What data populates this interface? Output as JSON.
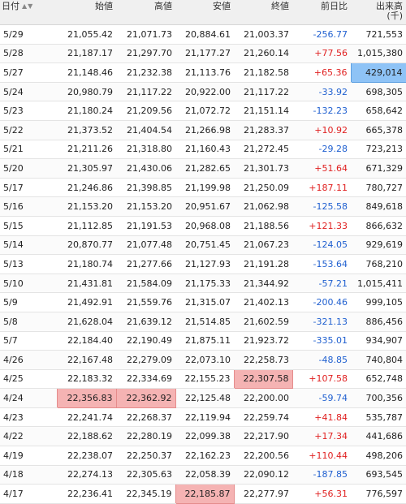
{
  "table": {
    "headers": {
      "date": "日付",
      "open": "始値",
      "high": "高値",
      "low": "安値",
      "close": "終値",
      "change": "前日比",
      "volume_line1": "出来高",
      "volume_line2": "(千)"
    },
    "sort_arrows": "▲▼",
    "rows": [
      {
        "date": "5/29",
        "open": "21,055.42",
        "high": "21,071.73",
        "low": "20,884.61",
        "close": "21,003.37",
        "change": "-256.77",
        "volume": "721,553"
      },
      {
        "date": "5/28",
        "open": "21,187.17",
        "high": "21,297.70",
        "low": "21,177.27",
        "close": "21,260.14",
        "change": "+77.56",
        "volume": "1,015,380"
      },
      {
        "date": "5/27",
        "open": "21,148.46",
        "high": "21,232.38",
        "low": "21,113.76",
        "close": "21,182.58",
        "change": "+65.36",
        "volume": "429,014"
      },
      {
        "date": "5/24",
        "open": "20,980.79",
        "high": "21,117.22",
        "low": "20,922.00",
        "close": "21,117.22",
        "change": "-33.92",
        "volume": "698,305"
      },
      {
        "date": "5/23",
        "open": "21,180.24",
        "high": "21,209.56",
        "low": "21,072.72",
        "close": "21,151.14",
        "change": "-132.23",
        "volume": "658,642"
      },
      {
        "date": "5/22",
        "open": "21,373.52",
        "high": "21,404.54",
        "low": "21,266.98",
        "close": "21,283.37",
        "change": "+10.92",
        "volume": "665,378"
      },
      {
        "date": "5/21",
        "open": "21,211.26",
        "high": "21,318.80",
        "low": "21,160.43",
        "close": "21,272.45",
        "change": "-29.28",
        "volume": "723,213"
      },
      {
        "date": "5/20",
        "open": "21,305.97",
        "high": "21,430.06",
        "low": "21,282.65",
        "close": "21,301.73",
        "change": "+51.64",
        "volume": "671,329"
      },
      {
        "date": "5/17",
        "open": "21,246.86",
        "high": "21,398.85",
        "low": "21,199.98",
        "close": "21,250.09",
        "change": "+187.11",
        "volume": "780,727"
      },
      {
        "date": "5/16",
        "open": "21,153.20",
        "high": "21,153.20",
        "low": "20,951.67",
        "close": "21,062.98",
        "change": "-125.58",
        "volume": "849,618"
      },
      {
        "date": "5/15",
        "open": "21,112.85",
        "high": "21,191.53",
        "low": "20,968.08",
        "close": "21,188.56",
        "change": "+121.33",
        "volume": "866,632"
      },
      {
        "date": "5/14",
        "open": "20,870.77",
        "high": "21,077.48",
        "low": "20,751.45",
        "close": "21,067.23",
        "change": "-124.05",
        "volume": "929,619"
      },
      {
        "date": "5/13",
        "open": "21,180.74",
        "high": "21,277.66",
        "low": "21,127.93",
        "close": "21,191.28",
        "change": "-153.64",
        "volume": "768,210"
      },
      {
        "date": "5/10",
        "open": "21,431.81",
        "high": "21,584.09",
        "low": "21,175.33",
        "close": "21,344.92",
        "change": "-57.21",
        "volume": "1,015,411"
      },
      {
        "date": "5/9",
        "open": "21,492.91",
        "high": "21,559.76",
        "low": "21,315.07",
        "close": "21,402.13",
        "change": "-200.46",
        "volume": "999,105"
      },
      {
        "date": "5/8",
        "open": "21,628.04",
        "high": "21,639.12",
        "low": "21,514.85",
        "close": "21,602.59",
        "change": "-321.13",
        "volume": "886,456"
      },
      {
        "date": "5/7",
        "open": "22,184.40",
        "high": "22,190.49",
        "low": "21,875.11",
        "close": "21,923.72",
        "change": "-335.01",
        "volume": "934,907"
      },
      {
        "date": "4/26",
        "open": "22,167.48",
        "high": "22,279.09",
        "low": "22,073.10",
        "close": "22,258.73",
        "change": "-48.85",
        "volume": "740,804"
      },
      {
        "date": "4/25",
        "open": "22,183.32",
        "high": "22,334.69",
        "low": "22,155.23",
        "close": "22,307.58",
        "change": "+107.58",
        "volume": "652,748"
      },
      {
        "date": "4/24",
        "open": "22,356.83",
        "high": "22,362.92",
        "low": "22,125.48",
        "close": "22,200.00",
        "change": "-59.74",
        "volume": "700,356"
      },
      {
        "date": "4/23",
        "open": "22,241.74",
        "high": "22,268.37",
        "low": "22,119.94",
        "close": "22,259.74",
        "change": "+41.84",
        "volume": "535,787"
      },
      {
        "date": "4/22",
        "open": "22,188.62",
        "high": "22,280.19",
        "low": "22,099.38",
        "close": "22,217.90",
        "change": "+17.34",
        "volume": "441,686"
      },
      {
        "date": "4/19",
        "open": "22,238.07",
        "high": "22,250.37",
        "low": "22,162.23",
        "close": "22,200.56",
        "change": "+110.44",
        "volume": "498,206"
      },
      {
        "date": "4/18",
        "open": "22,274.13",
        "high": "22,305.63",
        "low": "22,058.39",
        "close": "22,090.12",
        "change": "-187.85",
        "volume": "693,545"
      },
      {
        "date": "4/17",
        "open": "22,236.41",
        "high": "22,345.19",
        "low": "22,185.87",
        "close": "22,277.97",
        "change": "+56.31",
        "volume": "776,597"
      }
    ],
    "highlights": [
      {
        "row": 2,
        "col": "volume",
        "color": "blue"
      },
      {
        "row": 18,
        "col": "close",
        "color": "pink"
      },
      {
        "row": 19,
        "col": "open",
        "color": "pink"
      },
      {
        "row": 19,
        "col": "high",
        "color": "pink"
      },
      {
        "row": 24,
        "col": "low",
        "color": "pink"
      }
    ],
    "colors": {
      "positive": "#e02020",
      "negative": "#2060d0",
      "highlight_pink": "#f5b3b3",
      "highlight_blue": "#8ec3f6",
      "header_bg": "#f0f0f0"
    }
  }
}
